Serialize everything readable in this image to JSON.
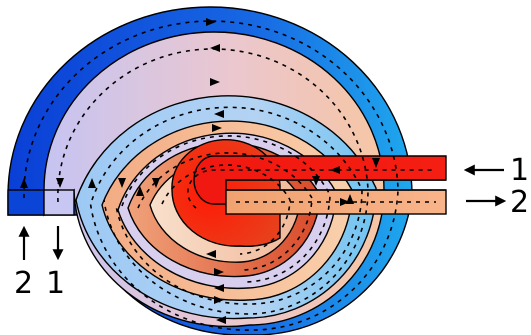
{
  "ports": {
    "in_bottom": "2",
    "out_bottom": "1",
    "in_right": "1",
    "out_right": "2"
  },
  "colors": {
    "band_1": "#0a3fd6",
    "band_2": "#cdc8ef",
    "band_3": "#a9cdf3",
    "band_4": "#f4bc94",
    "band_5": "#d6552f",
    "band_6": "#f6d6bc",
    "core": "#f2220c",
    "hot_channel": "#ec1a10",
    "warm_channel": "#f6ab7e",
    "outline": "#000000"
  }
}
